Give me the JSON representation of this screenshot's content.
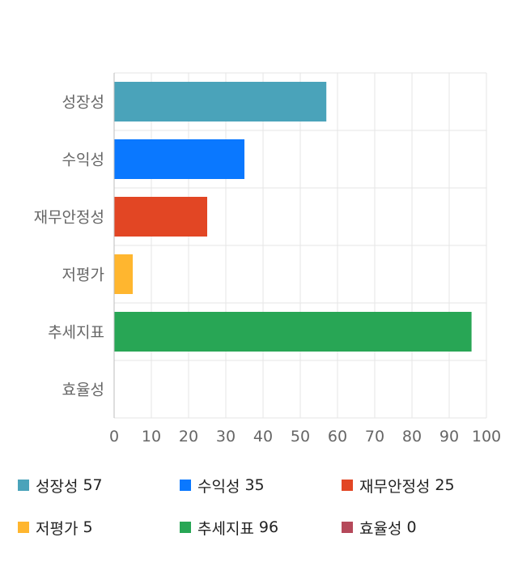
{
  "chart_data": {
    "type": "bar",
    "orientation": "horizontal",
    "categories": [
      "성장성",
      "수익성",
      "재무안정성",
      "저평가",
      "추세지표",
      "효율성"
    ],
    "values": [
      57,
      35,
      25,
      5,
      96,
      0
    ],
    "colors": [
      "#4aa3ba",
      "#0a78ff",
      "#e24624",
      "#ffb62f",
      "#28a655",
      "#b5495a"
    ],
    "xlim": [
      0,
      100
    ],
    "xticks": [
      0,
      10,
      20,
      30,
      40,
      50,
      60,
      70,
      80,
      90,
      100
    ],
    "grid": true,
    "legend_position": "bottom",
    "legend_columns": 3
  }
}
